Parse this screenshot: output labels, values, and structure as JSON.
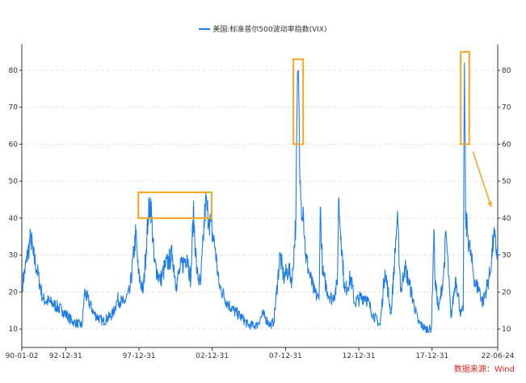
{
  "legend": {
    "label": "美国:标准普尔500波动率指数(VIX)"
  },
  "source": "数据来源：Wind",
  "colors": {
    "series": "#1f7de8",
    "highlight": "#f5a623",
    "axis": "#333333",
    "grid": "#e3e3e3",
    "source": "#e02020"
  },
  "chart_data": {
    "type": "line",
    "title": "",
    "xlabel": "",
    "ylabel": "",
    "ylim": [
      5,
      87
    ],
    "yticks": [
      10,
      20,
      30,
      40,
      50,
      60,
      70,
      80
    ],
    "x_range": [
      "1990-01-02",
      "2022-06-24"
    ],
    "x_tick_labels": [
      "90-01-02",
      "92-12-31",
      "97-12-31",
      "02-12-31",
      "07-12-31",
      "12-12-31",
      "17-12-31",
      "22-06-24"
    ],
    "x_tick_dates": [
      "1990-01-02",
      "1992-12-31",
      "1997-12-31",
      "2002-12-31",
      "2007-12-31",
      "2012-12-31",
      "2017-12-31",
      "2022-06-24"
    ],
    "grid": true,
    "legend_position": "top-center",
    "series": [
      {
        "name": "美国:标准普尔500波动率指数(VIX)",
        "x": [
          "1990-01",
          "1990-08",
          "1990-10",
          "1991-01",
          "1991-06",
          "1992-01",
          "1992-10",
          "1993-06",
          "1994-02",
          "1994-04",
          "1994-12",
          "1995-07",
          "1996-03",
          "1996-07",
          "1996-12",
          "1997-05",
          "1997-10",
          "1997-12",
          "1998-04",
          "1998-08",
          "1998-10",
          "1999-01",
          "1999-06",
          "1999-10",
          "2000-04",
          "2000-07",
          "2000-10",
          "2001-04",
          "2001-07",
          "2001-09",
          "2001-12",
          "2002-03",
          "2002-07",
          "2002-10",
          "2003-03",
          "2003-06",
          "2004-01",
          "2004-06",
          "2005-01",
          "2005-06",
          "2006-01",
          "2006-06",
          "2006-12",
          "2007-03",
          "2007-08",
          "2007-11",
          "2008-03",
          "2008-06",
          "2008-09",
          "2008-10",
          "2008-11",
          "2008-12",
          "2009-01",
          "2009-03",
          "2009-05",
          "2009-08",
          "2009-12",
          "2010-04",
          "2010-05",
          "2010-07",
          "2010-11",
          "2011-03",
          "2011-07",
          "2011-08",
          "2011-10",
          "2012-01",
          "2012-06",
          "2012-09",
          "2012-12",
          "2013-06",
          "2013-12",
          "2014-06",
          "2014-10",
          "2015-03",
          "2015-08",
          "2015-11",
          "2016-02",
          "2016-06",
          "2017-01",
          "2017-07",
          "2017-12",
          "2018-02",
          "2018-03",
          "2018-06",
          "2018-10",
          "2018-12",
          "2019-04",
          "2019-08",
          "2019-12",
          "2020-02",
          "2020-03",
          "2020-04",
          "2020-06",
          "2020-09",
          "2020-12",
          "2021-03",
          "2021-06",
          "2021-12",
          "2022-03",
          "2022-06-24"
        ],
        "values": [
          22,
          35,
          30,
          26,
          18,
          17,
          15,
          12,
          11,
          20,
          14,
          12,
          14,
          18,
          17,
          20,
          36,
          25,
          20,
          40,
          45,
          28,
          23,
          27,
          30,
          22,
          26,
          30,
          23,
          42,
          25,
          22,
          44,
          40,
          32,
          22,
          17,
          15,
          13,
          11,
          11,
          14,
          11,
          12,
          30,
          24,
          26,
          23,
          40,
          70,
          80,
          55,
          45,
          43,
          30,
          25,
          20,
          18,
          43,
          25,
          20,
          18,
          22,
          45,
          35,
          20,
          24,
          17,
          18,
          19,
          14,
          11,
          26,
          14,
          40,
          20,
          27,
          22,
          12,
          10,
          10,
          37,
          23,
          15,
          25,
          36,
          13,
          24,
          14,
          15,
          82,
          40,
          35,
          28,
          22,
          21,
          17,
          25,
          35,
          30
        ]
      }
    ],
    "annotations": [
      {
        "type": "box",
        "x_range": [
          "1997-12",
          "2002-12"
        ],
        "y_range": [
          40,
          47
        ]
      },
      {
        "type": "box",
        "x_range": [
          "2008-07",
          "2009-03"
        ],
        "y_range": [
          60,
          83
        ]
      },
      {
        "type": "box",
        "x_range": [
          "2019-12",
          "2020-07"
        ],
        "y_range": [
          60,
          85
        ]
      },
      {
        "type": "arrow",
        "from": [
          "2020-10",
          58
        ],
        "to": [
          "2022-01",
          43
        ]
      }
    ]
  }
}
